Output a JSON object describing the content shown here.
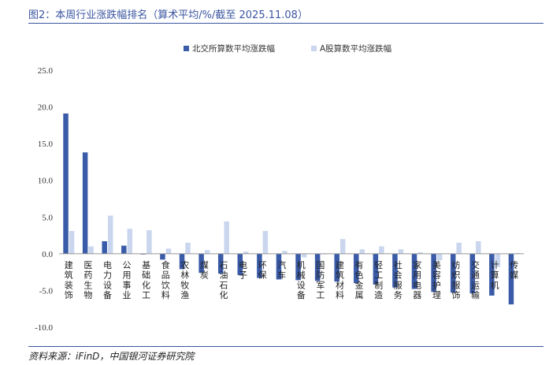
{
  "header": {
    "title": "图2：本周行业涨跌幅排名（算术平均/%/截至 2025.11.08）"
  },
  "footer": {
    "source": "资料来源：iFinD，中国银河证券研究院"
  },
  "colors": {
    "bse": "#3a5ba8",
    "ashare": "#cad6ee",
    "header_rule": "#3a55a0",
    "axis": "#999999"
  },
  "chart_data": {
    "type": "bar",
    "title": "",
    "xlabel": "",
    "ylabel": "",
    "ylim": [
      -10,
      25
    ],
    "yticks": [
      25,
      20,
      15,
      10,
      5,
      0,
      -5,
      -10
    ],
    "ytick_labels": [
      "25.0",
      "20.0",
      "15.0",
      "10.0",
      "5.0",
      "0.0",
      "-5.0",
      "-10.0"
    ],
    "grid": false,
    "legend": "top-center",
    "categories": [
      "建筑装饰",
      "医药生物",
      "电力设备",
      "公用事业",
      "基础化工",
      "食品饮料",
      "农林牧渔",
      "煤炭",
      "石油石化",
      "电子",
      "环保",
      "汽车",
      "机械设备",
      "国防军工",
      "建筑材料",
      "有色金属",
      "轻工制造",
      "社会服务",
      "家用电器",
      "美容护理",
      "纺织服饰",
      "交通运输",
      "计算机",
      "传媒"
    ],
    "series": [
      {
        "name": "北交所算数平均涨跌幅",
        "values": [
          19.1,
          13.8,
          1.7,
          1.1,
          -0.1,
          -0.8,
          -2.1,
          -2.6,
          -2.7,
          -2.9,
          -3.3,
          -3.5,
          -3.6,
          -3.7,
          -3.8,
          -4.0,
          -4.2,
          -4.6,
          -4.8,
          -5.2,
          -5.3,
          -5.4,
          -5.7,
          -6.9
        ]
      },
      {
        "name": "A股算数平均涨跌幅",
        "values": [
          3.1,
          1.0,
          5.2,
          3.4,
          3.2,
          0.7,
          1.5,
          0.5,
          4.4,
          0.3,
          3.1,
          0.4,
          -0.5,
          -0.1,
          2.0,
          0.6,
          1.0,
          0.6,
          0.2,
          -0.9,
          1.5,
          1.7,
          -1.8,
          0.1
        ]
      }
    ]
  }
}
